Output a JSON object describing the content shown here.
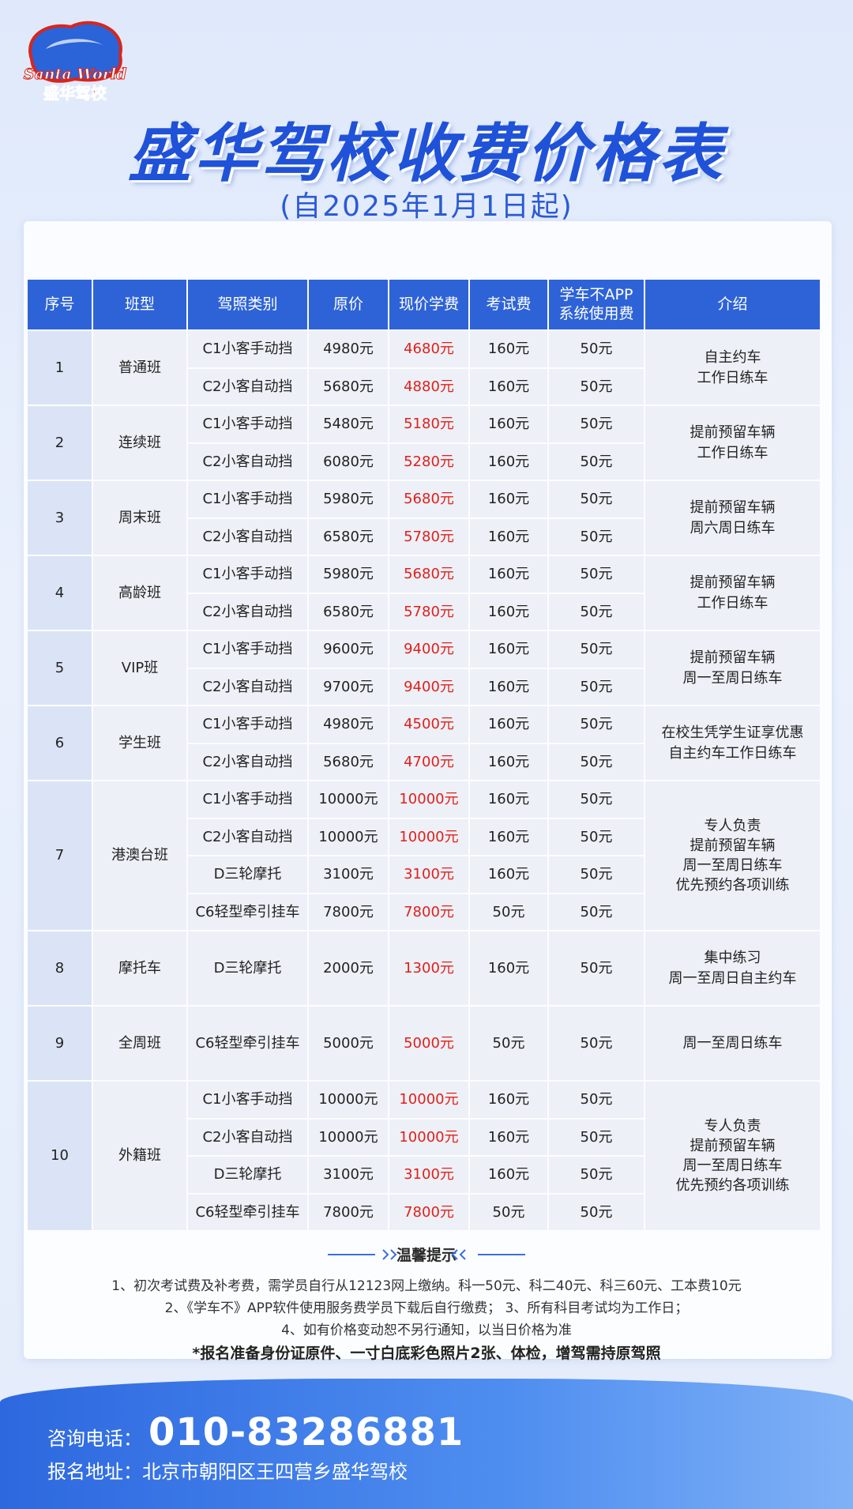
{
  "header": {
    "logo_en": "Santa World",
    "logo_cn": "盛华驾校",
    "title": "盛华驾校收费价格表",
    "subtitle": "(自2025年1月1日起)"
  },
  "table": {
    "columns": [
      "序号",
      "班型",
      "驾照类别",
      "原价",
      "现价学费",
      "考试费",
      [
        "学车不APP",
        "系统使用费"
      ],
      "介绍"
    ],
    "groups": [
      {
        "no": "1",
        "class": "普通班",
        "intro": [
          "自主约车",
          "工作日练车"
        ],
        "rows": [
          [
            "C1小客手动挡",
            "4980元",
            "4680元",
            "160元",
            "50元"
          ],
          [
            "C2小客自动挡",
            "5680元",
            "4880元",
            "160元",
            "50元"
          ]
        ]
      },
      {
        "no": "2",
        "class": "连续班",
        "intro": [
          "提前预留车辆",
          "工作日练车"
        ],
        "rows": [
          [
            "C1小客手动挡",
            "5480元",
            "5180元",
            "160元",
            "50元"
          ],
          [
            "C2小客自动挡",
            "6080元",
            "5280元",
            "160元",
            "50元"
          ]
        ]
      },
      {
        "no": "3",
        "class": "周末班",
        "intro": [
          "提前预留车辆",
          "周六周日练车"
        ],
        "rows": [
          [
            "C1小客手动挡",
            "5980元",
            "5680元",
            "160元",
            "50元"
          ],
          [
            "C2小客自动挡",
            "6580元",
            "5780元",
            "160元",
            "50元"
          ]
        ]
      },
      {
        "no": "4",
        "class": "高龄班",
        "intro": [
          "提前预留车辆",
          "工作日练车"
        ],
        "rows": [
          [
            "C1小客手动挡",
            "5980元",
            "5680元",
            "160元",
            "50元"
          ],
          [
            "C2小客自动挡",
            "6580元",
            "5780元",
            "160元",
            "50元"
          ]
        ]
      },
      {
        "no": "5",
        "class": "VIP班",
        "intro": [
          "提前预留车辆",
          "周一至周日练车"
        ],
        "rows": [
          [
            "C1小客手动挡",
            "9600元",
            "9400元",
            "160元",
            "50元"
          ],
          [
            "C2小客自动挡",
            "9700元",
            "9400元",
            "160元",
            "50元"
          ]
        ]
      },
      {
        "no": "6",
        "class": "学生班",
        "intro": [
          "在校生凭学生证享优惠",
          "自主约车工作日练车"
        ],
        "rows": [
          [
            "C1小客手动挡",
            "4980元",
            "4500元",
            "160元",
            "50元"
          ],
          [
            "C2小客自动挡",
            "5680元",
            "4700元",
            "160元",
            "50元"
          ]
        ]
      },
      {
        "no": "7",
        "class": "港澳台班",
        "intro": [
          "专人负责",
          "提前预留车辆",
          "周一至周日练车",
          "优先预约各项训练"
        ],
        "rows": [
          [
            "C1小客手动挡",
            "10000元",
            "10000元",
            "160元",
            "50元"
          ],
          [
            "C2小客自动挡",
            "10000元",
            "10000元",
            "160元",
            "50元"
          ],
          [
            "D三轮摩托",
            "3100元",
            "3100元",
            "160元",
            "50元"
          ],
          [
            "C6轻型牵引挂车",
            "7800元",
            "7800元",
            "50元",
            "50元"
          ]
        ]
      },
      {
        "no": "8",
        "class": "摩托车",
        "intro": [
          "集中练习",
          "周一至周日自主约车"
        ],
        "rows": [
          [
            "D三轮摩托",
            "2000元",
            "1300元",
            "160元",
            "50元"
          ]
        ]
      },
      {
        "no": "9",
        "class": "全周班",
        "intro": [
          "周一至周日练车"
        ],
        "rows": [
          [
            "C6轻型牵引挂车",
            "5000元",
            "5000元",
            "50元",
            "50元"
          ]
        ]
      },
      {
        "no": "10",
        "class": "外籍班",
        "intro": [
          "专人负责",
          "提前预留车辆",
          "周一至周日练车",
          "优先预约各项训练"
        ],
        "rows": [
          [
            "C1小客手动挡",
            "10000元",
            "10000元",
            "160元",
            "50元"
          ],
          [
            "C2小客自动挡",
            "10000元",
            "10000元",
            "160元",
            "50元"
          ],
          [
            "D三轮摩托",
            "3100元",
            "3100元",
            "160元",
            "50元"
          ],
          [
            "C6轻型牵引挂车",
            "7800元",
            "7800元",
            "50元",
            "50元"
          ]
        ]
      }
    ]
  },
  "notes": {
    "title": "温馨提示",
    "lines": [
      "1、初次考试费及补考费，需学员自行从12123网上缴纳。科一50元、科二40元、科三60元、工本费10元",
      "2、《学车不》APP软件使用服务费学员下载后自行缴费；  3、所有科目考试均为工作日；",
      "4、如有价格变动恕不另行通知，以当日价格为准"
    ],
    "requirement": "*报名准备身份证原件、一寸白底彩色照片2张、体检，增驾需持原驾照"
  },
  "footer": {
    "phone_label": "咨询电话：",
    "phone": "010-83286881",
    "address_label": "报名地址：",
    "address": "北京市朝阳区王四营乡盛华驾校"
  }
}
